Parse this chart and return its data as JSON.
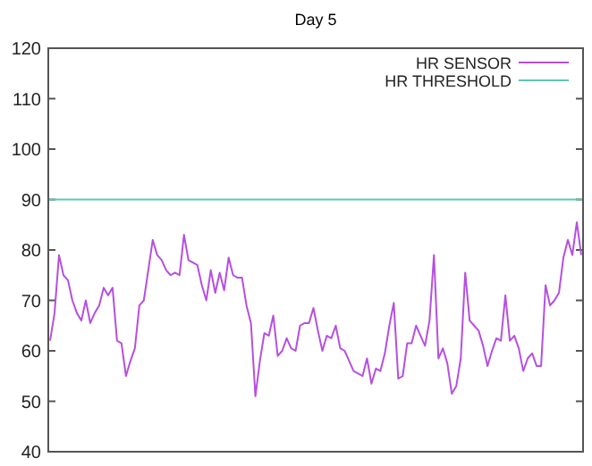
{
  "chart_data": {
    "type": "line",
    "title": "Day 5",
    "categories": [
      null,
      null,
      null,
      null,
      null,
      null,
      null,
      null,
      null,
      null,
      null,
      null,
      null,
      null,
      null,
      null,
      null,
      null,
      null,
      null,
      null,
      null,
      null,
      null,
      null,
      null,
      null,
      null,
      null,
      null,
      null,
      null,
      null,
      null,
      null,
      null,
      null,
      null,
      null,
      null,
      null,
      null,
      null,
      null,
      null,
      null,
      null,
      null,
      null,
      null,
      null,
      null,
      null,
      null,
      null,
      null,
      null,
      null,
      null,
      null,
      null,
      null,
      null,
      null,
      null,
      null,
      null,
      null,
      null,
      null,
      null,
      null,
      null,
      null,
      null,
      null,
      null,
      null,
      null,
      null,
      null,
      null,
      null,
      null,
      null,
      null,
      null,
      null,
      null,
      null,
      null,
      null,
      null,
      null,
      null,
      null,
      null,
      null,
      null,
      null,
      null,
      null,
      null,
      null,
      null,
      null,
      null,
      null,
      null,
      null,
      null,
      null,
      null,
      null,
      null,
      null,
      null,
      null,
      null,
      null
    ],
    "series": [
      {
        "name": "HR SENSOR",
        "color": "#b64fe0",
        "values": [
          62,
          67.5,
          79,
          75,
          74,
          70,
          67.5,
          66,
          70,
          65.5,
          67.5,
          69,
          72.5,
          71,
          72.5,
          62,
          61.5,
          55,
          58,
          60.5,
          69,
          70,
          76,
          82,
          79,
          78,
          76,
          75,
          75.5,
          75,
          83,
          78,
          77.5,
          77,
          73,
          70,
          76,
          71.5,
          75.5,
          72,
          78.5,
          75,
          74.5,
          74.5,
          69,
          65.5,
          51,
          58,
          63.5,
          63,
          67,
          59,
          60,
          62.5,
          60.5,
          60,
          65,
          65.5,
          65.5,
          68.5,
          64,
          60,
          63,
          62.5,
          65,
          60.5,
          60,
          58,
          56,
          55.5,
          55,
          58.5,
          53.5,
          56.5,
          56,
          59.5,
          65,
          69.5,
          54.5,
          55,
          61.5,
          61.5,
          65,
          63,
          61,
          66,
          79,
          58.5,
          60.5,
          57.5,
          51.5,
          53,
          58.5,
          75.5,
          66,
          65,
          64,
          61,
          57,
          60,
          62.5,
          62,
          71,
          62,
          63,
          60.5,
          56,
          58.5,
          59.5,
          57,
          57,
          73,
          69,
          70,
          71.5,
          78.5,
          82,
          79,
          85.5,
          79
        ]
      }
    ],
    "ylim": [
      40,
      120
    ],
    "yticks": [
      40,
      50,
      60,
      70,
      80,
      90,
      100,
      110,
      120
    ],
    "ref_lines": [
      {
        "axis": "y",
        "value": 90,
        "label": "HR THRESHOLD",
        "color": "#5cc8b0"
      }
    ],
    "legend": "top right",
    "tick_labels": "y",
    "grid": false,
    "marker": "none",
    "line_style": "solid"
  }
}
